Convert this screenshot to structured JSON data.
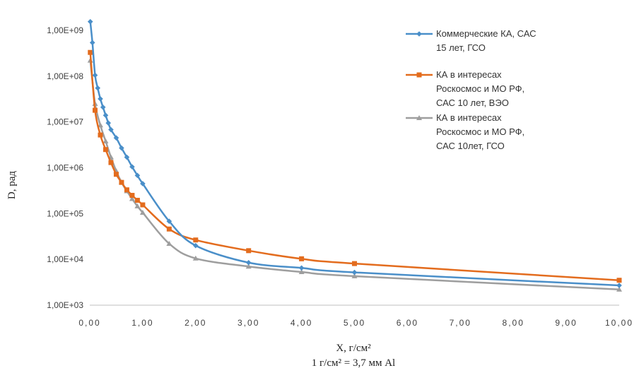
{
  "chart_data": {
    "type": "line",
    "xlabel": "X, г/см²",
    "xlabel_note": "1 г/см² = 3,7 мм Al",
    "ylabel": "D, рад",
    "y_scale": "log",
    "ylim": [
      1000,
      2000000000
    ],
    "xlim": [
      0,
      10
    ],
    "x_ticks": [
      "0,00",
      "1,00",
      "2,00",
      "3,00",
      "4,00",
      "5,00",
      "6,00",
      "7,00",
      "8,00",
      "9,00",
      "10,00"
    ],
    "y_ticks": [
      "1,00E+03",
      "1,00E+04",
      "1,00E+05",
      "1,00E+06",
      "1,00E+07",
      "1,00E+08",
      "1,00E+09"
    ],
    "legend_position": "top-right",
    "series": [
      {
        "name": "Коммерческие КА, САС 15 лет, ГСО",
        "name_lines": [
          "Коммерческие КА, САС",
          "15 лет, ГСО"
        ],
        "color": "#4a8fc9",
        "marker": "diamond",
        "x": [
          0.01,
          0.05,
          0.1,
          0.15,
          0.2,
          0.25,
          0.3,
          0.35,
          0.4,
          0.5,
          0.6,
          0.7,
          0.8,
          0.9,
          1.0,
          1.5,
          2.0,
          3.0,
          4.0,
          5.0,
          10.0
        ],
        "y": [
          1550000000,
          540000000,
          105000000,
          55000000,
          32000000,
          21000000,
          14000000,
          9500000,
          6800000,
          4500000,
          2700000,
          1700000,
          1050000,
          680000,
          450000,
          68000,
          20000,
          8500,
          6500,
          5200,
          2700
        ]
      },
      {
        "name": "КА в интересах Роскосмос и МО РФ, САС 10 лет, ВЭО",
        "name_lines": [
          "КА в интересах",
          "Роскосмос и МО РФ,",
          "САС 10 лет, ВЭО"
        ],
        "color": "#e36c1e",
        "marker": "square",
        "x": [
          0.01,
          0.1,
          0.2,
          0.3,
          0.4,
          0.5,
          0.6,
          0.7,
          0.8,
          0.9,
          1.0,
          1.5,
          2.0,
          3.0,
          4.0,
          5.0,
          10.0
        ],
        "y": [
          330000000,
          18000000,
          5200000,
          2500000,
          1300000,
          720000,
          480000,
          330000,
          250000,
          195000,
          155000,
          46000,
          26500,
          15500,
          10300,
          8100,
          3500
        ]
      },
      {
        "name": "КА в интересах Роскосмос и МО РФ, САС 10лет, ГСО",
        "name_lines": [
          "КА в интересах",
          "Роскосмос и МО РФ,",
          "САС 10лет, ГСО"
        ],
        "color": "#9e9e9e",
        "marker": "triangle",
        "x": [
          0.01,
          0.1,
          0.2,
          0.3,
          0.4,
          0.5,
          0.6,
          0.7,
          0.8,
          0.9,
          1.0,
          1.5,
          2.0,
          3.0,
          4.0,
          5.0,
          10.0
        ],
        "y": [
          220000000,
          25000000,
          8500000,
          3800000,
          1700000,
          850000,
          480000,
          310000,
          210000,
          145000,
          105000,
          22000,
          10500,
          7000,
          5300,
          4300,
          2200
        ]
      }
    ]
  }
}
